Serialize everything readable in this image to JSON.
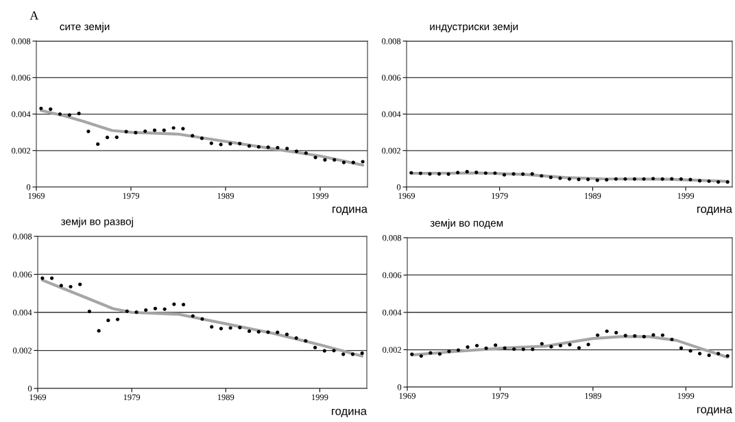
{
  "chart_data": [
    {
      "type": "scatter",
      "title": "сите земји",
      "xlabel": "година",
      "annotations": [
        "A"
      ],
      "xlim": [
        1969,
        2004
      ],
      "ylim": [
        0,
        0.008
      ],
      "xticks": [
        1969,
        1979,
        1989,
        1999
      ],
      "yticks": [
        0,
        0.002,
        0.004,
        0.006,
        0.008
      ],
      "grid": "y",
      "x": [
        1969.5,
        1970.5,
        1971.5,
        1972.5,
        1973.5,
        1974.5,
        1975.5,
        1976.5,
        1977.5,
        1978.5,
        1979.5,
        1980.5,
        1981.5,
        1982.5,
        1983.5,
        1984.5,
        1985.5,
        1986.5,
        1987.5,
        1988.5,
        1989.5,
        1990.5,
        1991.5,
        1992.5,
        1993.5,
        1994.5,
        1995.5,
        1996.5,
        1997.5,
        1998.5,
        1999.5,
        2000.5,
        2001.5,
        2002.5,
        2003.5
      ],
      "series": [
        {
          "marker": "circle",
          "color": "#000000",
          "values": [
            0.00431,
            0.00427,
            0.004,
            0.00395,
            0.00403,
            0.00305,
            0.00235,
            0.00272,
            0.00273,
            0.00304,
            0.00298,
            0.00306,
            0.00311,
            0.00311,
            0.00324,
            0.0032,
            0.00281,
            0.00267,
            0.0024,
            0.00233,
            0.00237,
            0.00238,
            0.00225,
            0.0022,
            0.00218,
            0.00216,
            0.00211,
            0.00196,
            0.00186,
            0.00162,
            0.00149,
            0.00149,
            0.00135,
            0.00135,
            0.00139
          ]
        },
        {
          "type": "line",
          "marker": "none",
          "color": "#a6a6a6",
          "x": [
            1969.5,
            1972,
            1974,
            1977,
            1979,
            1984,
            1989,
            1994,
            1999,
            2003.5
          ],
          "values": [
            0.0042,
            0.0039,
            0.0036,
            0.0031,
            0.003,
            0.0029,
            0.0025,
            0.0021,
            0.0017,
            0.0012
          ]
        }
      ]
    },
    {
      "type": "scatter",
      "title": "индустриски земји",
      "xlabel": "година",
      "xlim": [
        1969,
        2004
      ],
      "ylim": [
        0,
        0.008
      ],
      "xticks": [
        1969,
        1979,
        1989,
        1999
      ],
      "yticks": [
        0,
        0.002,
        0.004,
        0.006,
        0.008
      ],
      "grid": "y",
      "x": [
        1969.5,
        1970.5,
        1971.5,
        1972.5,
        1973.5,
        1974.5,
        1975.5,
        1976.5,
        1977.5,
        1978.5,
        1979.5,
        1980.5,
        1981.5,
        1982.5,
        1983.5,
        1984.5,
        1985.5,
        1986.5,
        1987.5,
        1988.5,
        1989.5,
        1990.5,
        1991.5,
        1992.5,
        1993.5,
        1994.5,
        1995.5,
        1996.5,
        1997.5,
        1998.5,
        1999.5,
        2000.5,
        2001.5,
        2002.5,
        2003.5
      ],
      "series": [
        {
          "marker": "circle",
          "color": "#000000",
          "values": [
            0.00078,
            0.00075,
            0.00072,
            0.00072,
            0.00071,
            0.00079,
            0.00084,
            0.0008,
            0.00076,
            0.00076,
            0.00067,
            0.00072,
            0.00071,
            0.00072,
            0.00061,
            0.00053,
            0.00048,
            0.00044,
            0.00042,
            0.00042,
            0.00037,
            0.0004,
            0.00044,
            0.00044,
            0.00044,
            0.00044,
            0.00046,
            0.00044,
            0.00045,
            0.00044,
            0.00041,
            0.00034,
            0.00032,
            0.00028,
            0.00028
          ]
        },
        {
          "type": "line",
          "marker": "none",
          "color": "#a6a6a6",
          "x": [
            1969.5,
            1977,
            1982,
            1986,
            1990,
            1997,
            2003.5
          ],
          "values": [
            0.00075,
            0.00077,
            0.00068,
            0.00052,
            0.00045,
            0.00043,
            0.00031
          ]
        }
      ]
    },
    {
      "type": "scatter",
      "title": "земји во развој",
      "xlabel": "година",
      "xlim": [
        1969,
        2004
      ],
      "ylim": [
        0,
        0.008
      ],
      "xticks": [
        1969,
        1979,
        1989,
        1999
      ],
      "yticks": [
        0,
        0.002,
        0.004,
        0.006,
        0.008
      ],
      "grid": "y",
      "x": [
        1969.5,
        1970.5,
        1971.5,
        1972.5,
        1973.5,
        1974.5,
        1975.5,
        1976.5,
        1977.5,
        1978.5,
        1979.5,
        1980.5,
        1981.5,
        1982.5,
        1983.5,
        1984.5,
        1985.5,
        1986.5,
        1987.5,
        1988.5,
        1989.5,
        1990.5,
        1991.5,
        1992.5,
        1993.5,
        1994.5,
        1995.5,
        1996.5,
        1997.5,
        1998.5,
        1999.5,
        2000.5,
        2001.5,
        2002.5,
        2003.5
      ],
      "series": [
        {
          "marker": "circle",
          "color": "#000000",
          "values": [
            0.0058,
            0.0058,
            0.00541,
            0.00535,
            0.00547,
            0.00405,
            0.00303,
            0.00358,
            0.00363,
            0.00406,
            0.00401,
            0.00412,
            0.0042,
            0.00417,
            0.00443,
            0.00441,
            0.00381,
            0.00365,
            0.00324,
            0.00315,
            0.00318,
            0.0032,
            0.00301,
            0.00298,
            0.00296,
            0.00295,
            0.00284,
            0.00265,
            0.0025,
            0.00215,
            0.00198,
            0.00199,
            0.0018,
            0.0018,
            0.00185
          ]
        },
        {
          "type": "line",
          "marker": "none",
          "color": "#a6a6a6",
          "x": [
            1969.5,
            1972,
            1974,
            1977,
            1979,
            1984,
            1989,
            1994,
            1999,
            2003.5
          ],
          "values": [
            0.0057,
            0.0052,
            0.0048,
            0.0042,
            0.004,
            0.0039,
            0.0034,
            0.0029,
            0.0023,
            0.0017
          ]
        }
      ]
    },
    {
      "type": "scatter",
      "title": "земји во подем",
      "xlabel": "година",
      "xlim": [
        1969,
        2004
      ],
      "ylim": [
        0,
        0.008
      ],
      "xticks": [
        1969,
        1979,
        1989,
        1999
      ],
      "yticks": [
        0,
        0.002,
        0.004,
        0.006,
        0.008
      ],
      "grid": "y",
      "x": [
        1969.5,
        1970.5,
        1971.5,
        1972.5,
        1973.5,
        1974.5,
        1975.5,
        1976.5,
        1977.5,
        1978.5,
        1979.5,
        1980.5,
        1981.5,
        1982.5,
        1983.5,
        1984.5,
        1985.5,
        1986.5,
        1987.5,
        1988.5,
        1989.5,
        1990.5,
        1991.5,
        1992.5,
        1993.5,
        1994.5,
        1995.5,
        1996.5,
        1997.5,
        1998.5,
        1999.5,
        2000.5,
        2001.5,
        2002.5,
        2003.5
      ],
      "series": [
        {
          "marker": "circle",
          "color": "#000000",
          "values": [
            0.00176,
            0.00166,
            0.00183,
            0.00177,
            0.00191,
            0.00198,
            0.00214,
            0.00222,
            0.00208,
            0.00224,
            0.00209,
            0.00203,
            0.00202,
            0.00202,
            0.00232,
            0.00216,
            0.00222,
            0.00227,
            0.0021,
            0.00228,
            0.00278,
            0.00299,
            0.00291,
            0.00276,
            0.00274,
            0.0027,
            0.00279,
            0.00278,
            0.00255,
            0.00209,
            0.00194,
            0.00179,
            0.0017,
            0.00179,
            0.00167
          ]
        },
        {
          "type": "line",
          "marker": "none",
          "color": "#a6a6a6",
          "x": [
            1969.5,
            1974,
            1979,
            1984,
            1989,
            1992,
            1995,
            1998,
            2001,
            2003.5
          ],
          "values": [
            0.00172,
            0.0019,
            0.00208,
            0.0022,
            0.0026,
            0.0027,
            0.0027,
            0.0025,
            0.002,
            0.0016
          ]
        }
      ]
    }
  ]
}
